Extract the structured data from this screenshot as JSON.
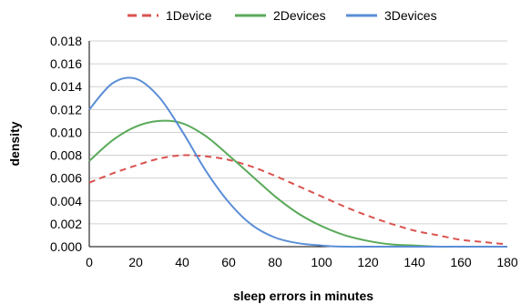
{
  "chart_data": {
    "type": "line",
    "xlabel": "sleep errors in minutes",
    "ylabel": "density",
    "xlim": [
      0,
      180
    ],
    "ylim": [
      0,
      0.018
    ],
    "x_ticks": [
      0,
      20,
      40,
      60,
      80,
      100,
      120,
      140,
      160,
      180
    ],
    "y_ticks": [
      "0.000",
      "0.002",
      "0.004",
      "0.006",
      "0.008",
      "0.010",
      "0.012",
      "0.014",
      "0.016",
      "0.018"
    ],
    "grid": "horizontal",
    "legend_position": "top",
    "x": [
      0,
      10,
      20,
      30,
      40,
      50,
      60,
      70,
      80,
      90,
      100,
      110,
      120,
      130,
      140,
      150,
      160,
      170,
      180
    ],
    "series": [
      {
        "name": "1Device",
        "color": "#d9534f",
        "style": "dashed",
        "values": [
          0.0056,
          0.0064,
          0.0071,
          0.0077,
          0.008,
          0.0079,
          0.0076,
          0.007,
          0.0062,
          0.0053,
          0.0044,
          0.0035,
          0.0027,
          0.002,
          0.0014,
          0.001,
          0.0006,
          0.0004,
          0.0002
        ]
      },
      {
        "name": "2Devices",
        "color": "#5aaa5a",
        "style": "solid",
        "values": [
          0.0075,
          0.0093,
          0.0105,
          0.011,
          0.0108,
          0.0097,
          0.008,
          0.0062,
          0.0044,
          0.0029,
          0.0018,
          0.001,
          0.0005,
          0.0002,
          0.0001,
          0.0,
          0.0,
          0.0,
          0.0
        ]
      },
      {
        "name": "3Devices",
        "color": "#5b8ed6",
        "style": "solid",
        "values": [
          0.012,
          0.0143,
          0.0147,
          0.0131,
          0.0101,
          0.0067,
          0.0039,
          0.0019,
          0.0008,
          0.0003,
          0.0001,
          0.0,
          0.0,
          0.0,
          0.0,
          0.0,
          0.0,
          0.0,
          0.0
        ]
      }
    ]
  }
}
